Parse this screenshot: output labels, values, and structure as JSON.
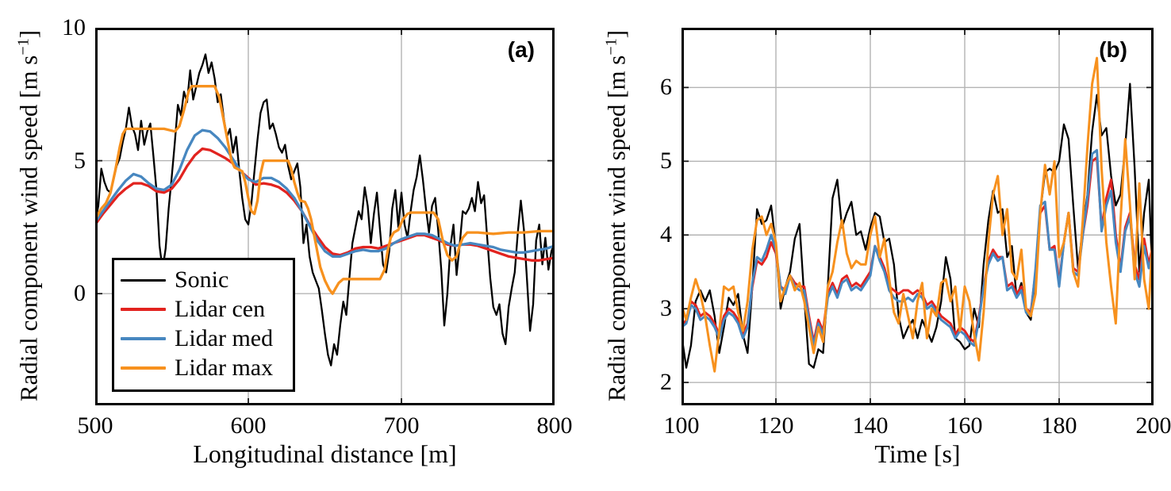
{
  "figure": {
    "background": "#ffffff",
    "grid_color": "#b4b4b4",
    "frame_color": "#000000",
    "tick_color": "#1a1a1a"
  },
  "chart_data": [
    {
      "type": "line",
      "panel_label": "(a)",
      "xlabel": "Longitudinal distance [m]",
      "ylabel": "Radial component wind speed [m s−1]",
      "ylabel_pre": "Radial component wind speed [m s",
      "ylabel_sup": "−1",
      "ylabel_post": "]",
      "xlim": [
        500,
        800
      ],
      "ylim": [
        -4.2,
        10
      ],
      "xticks": [
        500,
        600,
        700,
        800
      ],
      "yticks": [
        0,
        5,
        10
      ],
      "grid": true,
      "legend": {
        "visible": true,
        "position": "lower-left",
        "entries": [
          "Sonic",
          "Lidar cen",
          "Lidar med",
          "Lidar max"
        ]
      },
      "series": [
        {
          "name": "Sonic",
          "color": "#000000",
          "width": 2.3,
          "x0": 500,
          "dx": 2,
          "y": [
            2.7,
            3.3,
            4.7,
            4.2,
            3.9,
            3.8,
            4.3,
            4.8,
            5.1,
            5.7,
            6.2,
            7.0,
            6.3,
            6.0,
            5.4,
            6.5,
            5.6,
            6.1,
            6.4,
            5.2,
            3.9,
            1.8,
            0.9,
            1.7,
            3.2,
            4.4,
            5.7,
            7.1,
            6.7,
            7.6,
            7.2,
            8.4,
            7.3,
            7.8,
            8.3,
            8.6,
            9.0,
            8.3,
            8.7,
            8.1,
            7.2,
            7.5,
            6.6,
            5.9,
            6.2,
            5.3,
            5.9,
            4.7,
            3.6,
            2.8,
            2.6,
            3.4,
            4.6,
            5.8,
            6.8,
            7.2,
            7.3,
            6.2,
            6.4,
            6.0,
            5.5,
            5.3,
            5.6,
            4.8,
            4.3,
            4.6,
            4.9,
            4.0,
            1.9,
            2.6,
            1.4,
            0.8,
            0.5,
            0.2,
            -0.6,
            -1.5,
            -2.3,
            -2.7,
            -1.9,
            -2.3,
            -1.2,
            -0.3,
            -0.8,
            0.6,
            1.9,
            2.5,
            3.1,
            2.8,
            4.0,
            3.3,
            1.9,
            3.0,
            3.8,
            2.4,
            1.1,
            0.8,
            1.6,
            3.2,
            3.9,
            2.5,
            3.8,
            2.6,
            2.1,
            3.1,
            3.9,
            4.4,
            5.2,
            4.3,
            3.2,
            2.3,
            3.3,
            3.6,
            2.4,
            0.9,
            -1.2,
            0.0,
            1.8,
            2.6,
            0.7,
            1.8,
            3.1,
            3.0,
            3.2,
            3.6,
            3.1,
            4.2,
            3.4,
            3.7,
            2.1,
            0.6,
            -0.5,
            -0.8,
            -0.4,
            -1.5,
            -1.9,
            -0.5,
            0.2,
            0.8,
            2.3,
            3.5,
            2.4,
            0.5,
            -1.4,
            -0.4,
            2.0,
            2.6,
            1.1,
            2.1,
            0.9,
            1.6,
            1.9
          ]
        },
        {
          "name": "Lidar cen",
          "color": "#e2231f",
          "width": 3.3,
          "x0": 500,
          "dx": 5,
          "y": [
            2.6,
            3.0,
            3.35,
            3.7,
            3.95,
            4.15,
            4.15,
            4.05,
            3.85,
            3.8,
            3.95,
            4.3,
            4.8,
            5.2,
            5.45,
            5.4,
            5.25,
            5.1,
            4.9,
            4.6,
            4.35,
            4.1,
            4.15,
            4.1,
            4.0,
            3.8,
            3.5,
            3.1,
            2.6,
            2.15,
            1.75,
            1.5,
            1.45,
            1.55,
            1.7,
            1.75,
            1.75,
            1.7,
            1.8,
            1.9,
            2.0,
            2.1,
            2.2,
            2.2,
            2.1,
            2.0,
            1.85,
            1.8,
            1.85,
            1.85,
            1.8,
            1.7,
            1.6,
            1.5,
            1.4,
            1.35,
            1.3,
            1.25,
            1.25,
            1.3,
            1.35
          ]
        },
        {
          "name": "Lidar med",
          "color": "#4787c0",
          "width": 3.3,
          "x0": 500,
          "dx": 5,
          "y": [
            2.7,
            3.1,
            3.5,
            3.9,
            4.25,
            4.5,
            4.4,
            4.15,
            3.95,
            3.9,
            4.1,
            4.65,
            5.4,
            5.95,
            6.15,
            6.1,
            5.85,
            5.5,
            5.05,
            4.6,
            4.3,
            4.2,
            4.35,
            4.35,
            4.2,
            3.95,
            3.6,
            3.1,
            2.55,
            2.0,
            1.6,
            1.4,
            1.4,
            1.5,
            1.6,
            1.65,
            1.6,
            1.6,
            1.7,
            1.9,
            2.05,
            2.15,
            2.25,
            2.25,
            2.2,
            2.05,
            1.9,
            1.8,
            1.85,
            1.9,
            1.85,
            1.8,
            1.75,
            1.65,
            1.6,
            1.55,
            1.55,
            1.6,
            1.65,
            1.7,
            1.8
          ]
        },
        {
          "name": "Lidar max",
          "color": "#f7911e",
          "width": 3.3,
          "x": [
            500,
            504,
            507,
            510,
            513,
            516,
            518,
            520,
            545,
            552,
            555,
            558,
            561,
            563,
            578,
            581,
            584,
            587,
            589,
            591,
            596,
            598,
            600,
            602,
            604,
            606,
            608,
            610,
            626,
            628,
            630,
            632,
            634,
            637,
            639,
            641,
            644,
            647,
            650,
            653,
            655,
            657,
            659,
            662,
            686,
            689,
            691,
            693,
            695,
            698,
            701,
            704,
            706,
            721,
            724,
            727,
            730,
            733,
            736,
            738,
            740,
            743,
            750,
            760,
            770,
            780,
            790,
            800
          ],
          "y": [
            2.8,
            3.2,
            3.4,
            3.8,
            4.6,
            5.5,
            6.0,
            6.2,
            6.2,
            6.1,
            6.3,
            6.9,
            7.6,
            7.8,
            7.8,
            7.4,
            6.5,
            5.6,
            5.0,
            4.75,
            4.6,
            4.2,
            3.6,
            3.1,
            3.0,
            3.5,
            4.5,
            5.0,
            5.0,
            4.7,
            4.2,
            3.8,
            3.5,
            3.45,
            3.2,
            2.8,
            1.9,
            1.0,
            0.5,
            0.15,
            0.0,
            0.2,
            0.4,
            0.55,
            0.55,
            0.9,
            1.6,
            2.1,
            2.3,
            2.4,
            2.8,
            3.0,
            3.05,
            3.05,
            2.8,
            2.0,
            1.45,
            1.25,
            1.4,
            1.8,
            2.1,
            2.3,
            2.3,
            2.25,
            2.3,
            2.3,
            2.35,
            2.35
          ]
        }
      ]
    },
    {
      "type": "line",
      "panel_label": "(b)",
      "xlabel": "Time [s]",
      "ylabel": "Radial component wind speed [m s−1]",
      "ylabel_pre": "Radial component wind speed [m s",
      "ylabel_sup": "−1",
      "ylabel_post": "]",
      "xlim": [
        100,
        200
      ],
      "ylim": [
        1.69,
        6.81
      ],
      "xticks": [
        100,
        120,
        140,
        160,
        180,
        200
      ],
      "yticks": [
        2,
        3,
        4,
        5,
        6
      ],
      "grid": true,
      "legend": {
        "visible": false
      },
      "series": [
        {
          "name": "Sonic",
          "color": "#000000",
          "width": 2.3,
          "x0": 100,
          "dx": 1,
          "y": [
            2.65,
            2.2,
            2.5,
            3.1,
            3.25,
            3.1,
            3.25,
            2.9,
            2.4,
            2.75,
            3.15,
            3.05,
            3.2,
            2.65,
            2.4,
            3.3,
            4.35,
            4.15,
            4.2,
            4.4,
            3.85,
            3.0,
            3.3,
            3.5,
            3.95,
            4.15,
            3.15,
            2.25,
            2.2,
            2.45,
            2.4,
            3.3,
            4.5,
            4.75,
            4.1,
            4.3,
            4.45,
            4.0,
            4.05,
            3.8,
            4.1,
            4.3,
            4.25,
            3.9,
            3.95,
            3.6,
            2.9,
            2.6,
            2.75,
            2.85,
            2.6,
            2.85,
            2.7,
            2.55,
            2.75,
            3.1,
            3.7,
            3.4,
            2.6,
            2.55,
            2.45,
            2.5,
            3.0,
            2.75,
            3.6,
            4.2,
            4.6,
            4.3,
            4.35,
            3.7,
            3.85,
            3.15,
            3.35,
            2.95,
            2.85,
            3.4,
            4.3,
            4.85,
            4.9,
            4.85,
            5.0,
            5.5,
            5.3,
            4.4,
            3.55,
            4.1,
            4.55,
            5.4,
            5.9,
            5.35,
            5.45,
            4.8,
            4.4,
            4.55,
            5.2,
            6.05,
            4.9,
            3.5,
            4.3,
            4.75,
            2.95
          ]
        },
        {
          "name": "Lidar cen",
          "color": "#e2231f",
          "width": 3.0,
          "x0": 100,
          "dx": 1,
          "y": [
            2.75,
            2.85,
            3.1,
            3.05,
            2.9,
            2.95,
            2.9,
            2.8,
            2.65,
            2.9,
            3.0,
            2.95,
            2.85,
            2.65,
            2.8,
            3.3,
            3.65,
            3.6,
            3.7,
            3.9,
            3.75,
            3.3,
            3.25,
            3.45,
            3.35,
            3.3,
            3.3,
            2.9,
            2.55,
            2.85,
            2.7,
            3.2,
            3.35,
            3.2,
            3.4,
            3.45,
            3.3,
            3.35,
            3.3,
            3.4,
            3.5,
            3.85,
            3.7,
            3.55,
            3.3,
            3.25,
            3.2,
            3.25,
            3.25,
            3.2,
            3.25,
            3.2,
            3.05,
            3.1,
            3.0,
            2.9,
            2.85,
            2.8,
            2.65,
            2.75,
            2.7,
            2.6,
            2.55,
            2.9,
            3.3,
            3.65,
            3.8,
            3.7,
            3.7,
            3.3,
            3.35,
            3.2,
            3.3,
            3.0,
            2.95,
            3.5,
            4.3,
            4.4,
            3.8,
            3.85,
            3.35,
            3.9,
            4.3,
            3.55,
            3.5,
            4.0,
            4.4,
            5.0,
            5.05,
            4.1,
            4.5,
            4.75,
            4.0,
            3.55,
            4.1,
            4.3,
            3.6,
            3.4,
            3.95,
            3.6,
            3.9
          ]
        },
        {
          "name": "Lidar med",
          "color": "#4787c0",
          "width": 3.0,
          "x0": 100,
          "dx": 1,
          "y": [
            2.75,
            2.8,
            3.05,
            3.0,
            2.85,
            2.9,
            2.85,
            2.75,
            2.6,
            2.85,
            2.95,
            2.9,
            2.8,
            2.6,
            2.75,
            3.35,
            3.7,
            3.65,
            3.8,
            4.0,
            3.8,
            3.3,
            3.2,
            3.45,
            3.3,
            3.25,
            3.25,
            2.85,
            2.5,
            2.8,
            2.65,
            3.15,
            3.3,
            3.15,
            3.35,
            3.4,
            3.25,
            3.3,
            3.25,
            3.35,
            3.45,
            3.85,
            3.65,
            3.5,
            3.25,
            3.15,
            3.1,
            3.1,
            3.15,
            3.1,
            3.2,
            3.15,
            3.0,
            3.05,
            2.95,
            2.85,
            2.8,
            2.75,
            2.6,
            2.7,
            2.65,
            2.55,
            2.5,
            2.85,
            3.3,
            3.6,
            3.75,
            3.65,
            3.7,
            3.25,
            3.3,
            3.15,
            3.25,
            2.95,
            2.9,
            3.55,
            4.4,
            4.45,
            3.8,
            3.8,
            3.3,
            3.9,
            4.3,
            3.5,
            3.45,
            4.0,
            4.5,
            5.1,
            5.15,
            4.05,
            4.4,
            4.6,
            3.9,
            3.5,
            4.05,
            4.25,
            3.5,
            3.3,
            3.85,
            3.55,
            3.8
          ]
        },
        {
          "name": "Lidar max",
          "color": "#f7911e",
          "width": 3.0,
          "x0": 100,
          "dx": 1,
          "y": [
            3.05,
            2.85,
            3.15,
            3.4,
            3.2,
            2.9,
            2.5,
            2.15,
            2.7,
            3.3,
            3.25,
            3.3,
            2.95,
            2.7,
            3.1,
            3.8,
            4.2,
            4.25,
            4.0,
            4.15,
            3.9,
            3.1,
            3.3,
            3.45,
            3.25,
            3.35,
            3.1,
            2.75,
            2.4,
            2.75,
            2.55,
            3.3,
            3.5,
            3.9,
            4.2,
            3.75,
            3.55,
            3.65,
            3.6,
            3.6,
            4.0,
            4.25,
            3.7,
            3.95,
            3.4,
            2.95,
            2.8,
            3.2,
            2.9,
            2.6,
            3.1,
            3.35,
            2.6,
            3.0,
            2.9,
            3.35,
            3.4,
            3.1,
            3.3,
            2.7,
            3.3,
            3.1,
            2.65,
            2.3,
            2.95,
            3.9,
            4.55,
            4.8,
            4.0,
            4.35,
            3.5,
            3.4,
            3.8,
            3.0,
            2.9,
            3.2,
            4.3,
            4.95,
            4.55,
            5.0,
            3.7,
            3.9,
            4.3,
            3.5,
            3.3,
            4.2,
            5.2,
            6.05,
            6.4,
            4.9,
            3.9,
            3.3,
            2.8,
            4.2,
            5.3,
            4.4,
            3.4,
            4.7,
            3.4,
            3.0,
            4.2
          ]
        }
      ]
    }
  ]
}
